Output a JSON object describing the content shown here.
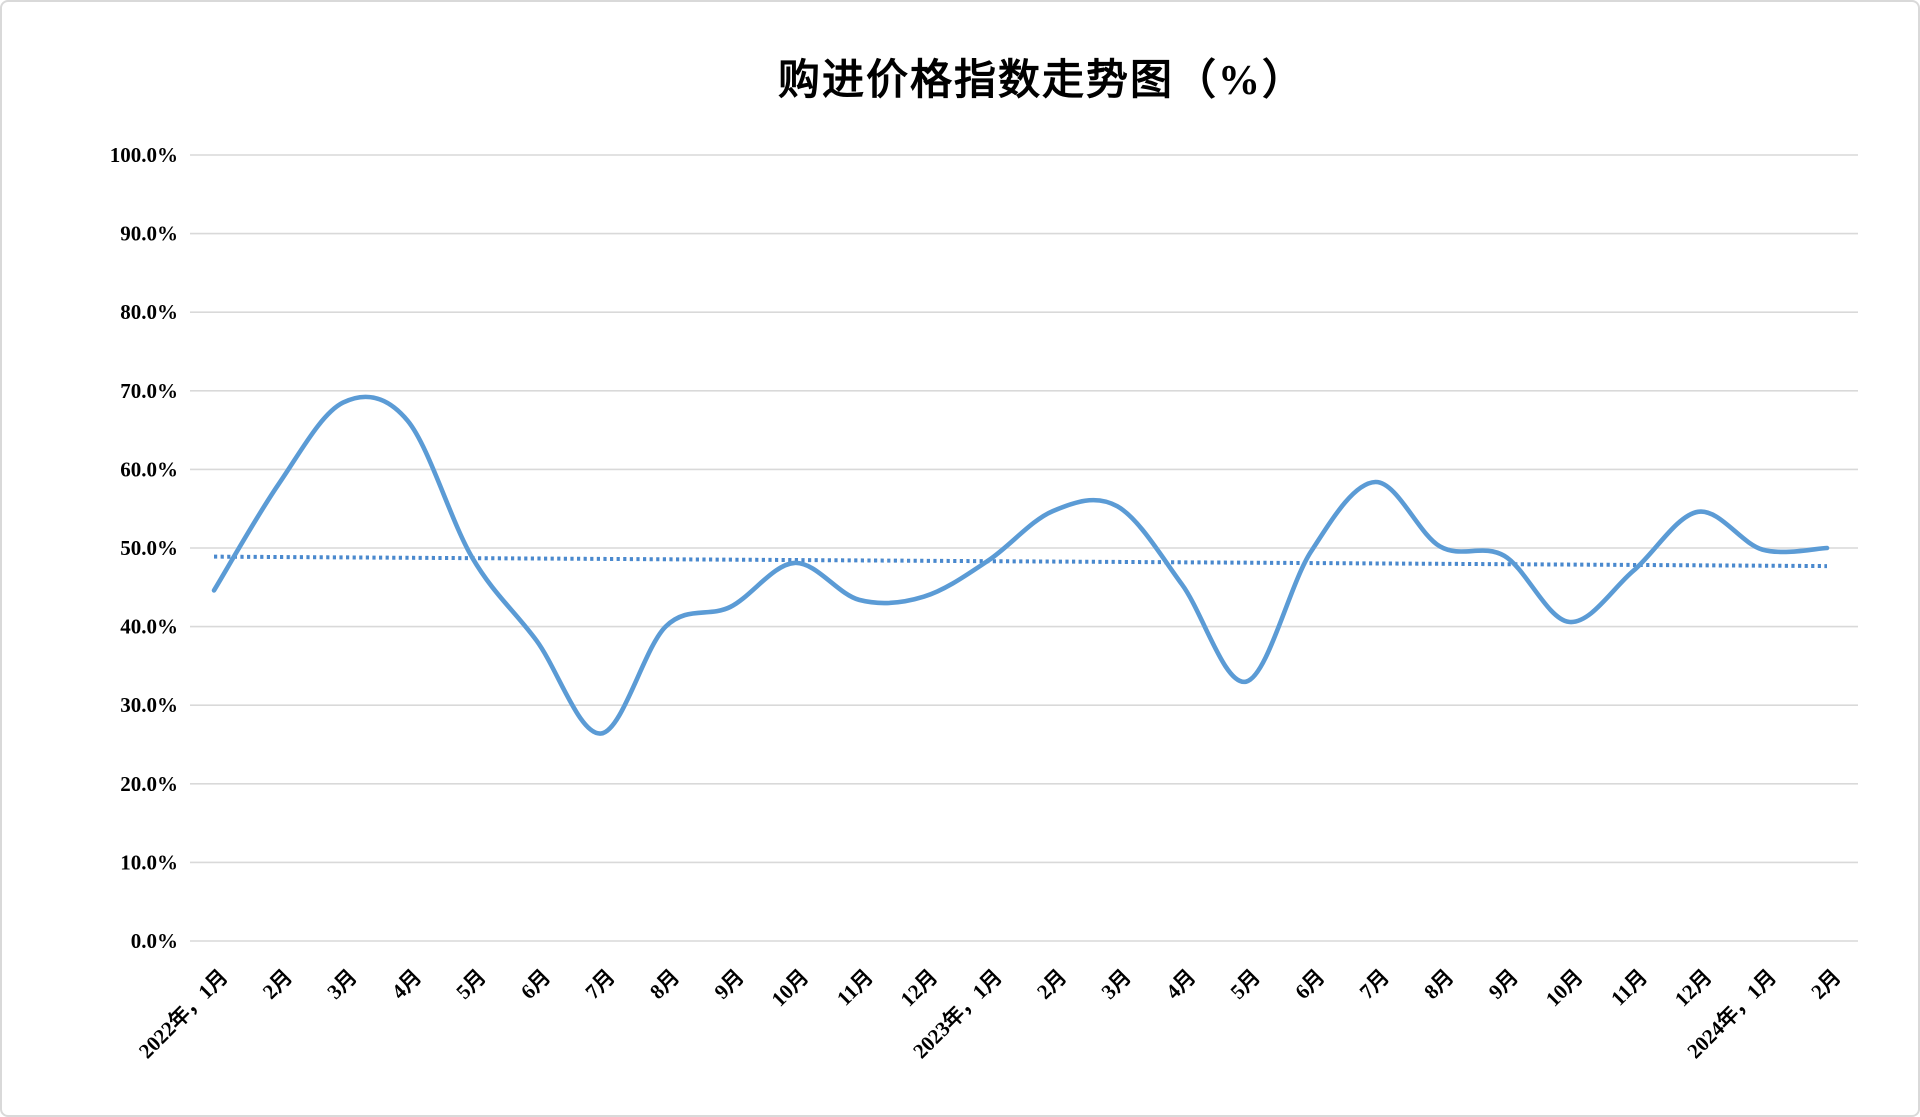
{
  "chart_data": {
    "type": "line",
    "title": "购进价格指数走势图（%）",
    "categories": [
      "2022年，1月",
      "2月",
      "3月",
      "4月",
      "5月",
      "6月",
      "7月",
      "8月",
      "9月",
      "10月",
      "11月",
      "12月",
      "2023年，1月",
      "2月",
      "3月",
      "4月",
      "5月",
      "6月",
      "7月",
      "8月",
      "9月",
      "10月",
      "11月",
      "12月",
      "2024年，1月",
      "2月"
    ],
    "values": [
      44.6,
      58.1,
      68.5,
      66.2,
      48.8,
      38.2,
      26.4,
      40.0,
      42.5,
      48.1,
      43.4,
      43.8,
      48.4,
      54.7,
      55.3,
      45.4,
      33.0,
      49.5,
      58.4,
      50.2,
      49.0,
      40.6,
      47.1,
      54.6,
      49.8,
      50.0
    ],
    "trendline": {
      "style": "dotted",
      "start_value": 48.9,
      "end_value": 47.7
    },
    "ylim": [
      0,
      100
    ],
    "ytick_step": 10,
    "ytick_labels": [
      "0.0%",
      "10.0%",
      "20.0%",
      "30.0%",
      "40.0%",
      "50.0%",
      "60.0%",
      "70.0%",
      "80.0%",
      "90.0%",
      "100.0%"
    ],
    "xlabel": "",
    "ylabel": "",
    "grid": "horizontal",
    "legend": "none",
    "colors": {
      "line": "#5B9BD5",
      "trendline": "#4A89CE",
      "gridline": "#D9D9D9",
      "text": "#000000",
      "background": "#FFFFFF"
    }
  }
}
